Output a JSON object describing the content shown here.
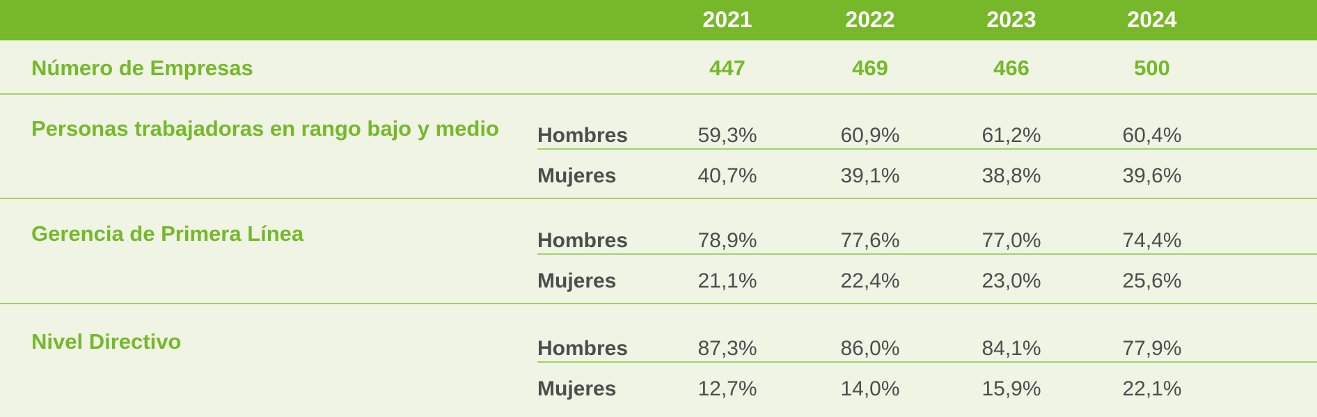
{
  "colors": {
    "header_bg": "#76b82a",
    "row_bg": "#eff4e4",
    "label_green": "#76b82a",
    "text_dark": "#4a4e4d",
    "divider": "#a6d068"
  },
  "chart_data": {
    "type": "table",
    "years": [
      "2021",
      "2022",
      "2023",
      "2024"
    ],
    "companies": {
      "label": "Número de Empresas",
      "values": [
        "447",
        "469",
        "466",
        "500"
      ]
    },
    "groups": [
      {
        "label": "Personas trabajadoras en rango bajo y medio",
        "rows": [
          {
            "gender": "Hombres",
            "values": [
              "59,3%",
              "60,9%",
              "61,2%",
              "60,4%"
            ]
          },
          {
            "gender": "Mujeres",
            "values": [
              "40,7%",
              "39,1%",
              "38,8%",
              "39,6%"
            ]
          }
        ]
      },
      {
        "label": "Gerencia de Primera Línea",
        "rows": [
          {
            "gender": "Hombres",
            "values": [
              "78,9%",
              "77,6%",
              "77,0%",
              "74,4%"
            ]
          },
          {
            "gender": "Mujeres",
            "values": [
              "21,1%",
              "22,4%",
              "23,0%",
              "25,6%"
            ]
          }
        ]
      },
      {
        "label": "Nivel Directivo",
        "rows": [
          {
            "gender": "Hombres",
            "values": [
              "87,3%",
              "86,0%",
              "84,1%",
              "77,9%"
            ]
          },
          {
            "gender": "Mujeres",
            "values": [
              "12,7%",
              "14,0%",
              "15,9%",
              "22,1%"
            ]
          }
        ]
      }
    ]
  }
}
